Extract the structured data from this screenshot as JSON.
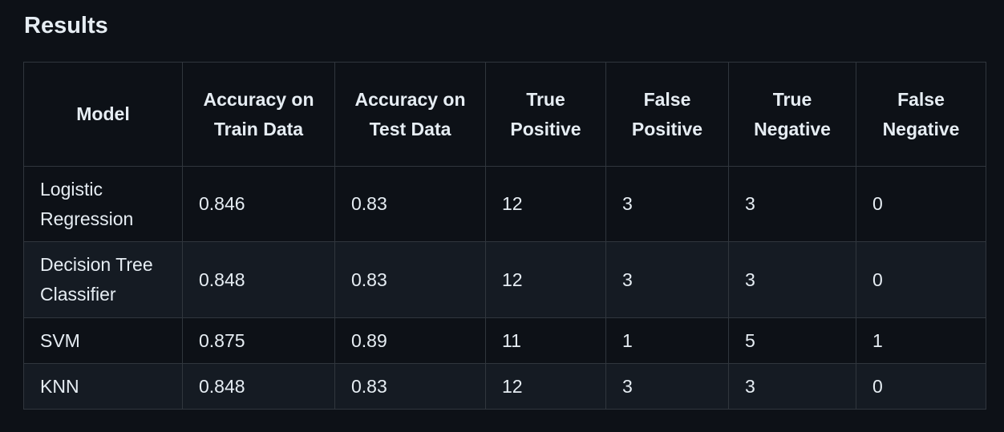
{
  "section": {
    "title": "Results"
  },
  "table": {
    "headers": [
      "Model",
      "Accuracy on Train Data",
      "Accuracy on Test Data",
      "True Positive",
      "False Positive",
      "True Negative",
      "False Negative"
    ],
    "rows": [
      [
        "Logistic Regression",
        "0.846",
        "0.83",
        "12",
        "3",
        "3",
        "0"
      ],
      [
        "Decision Tree Classifier",
        "0.848",
        "0.83",
        "12",
        "3",
        "3",
        "0"
      ],
      [
        "SVM",
        "0.875",
        "0.89",
        "11",
        "1",
        "5",
        "1"
      ],
      [
        "KNN",
        "0.848",
        "0.83",
        "12",
        "3",
        "3",
        "0"
      ]
    ]
  }
}
